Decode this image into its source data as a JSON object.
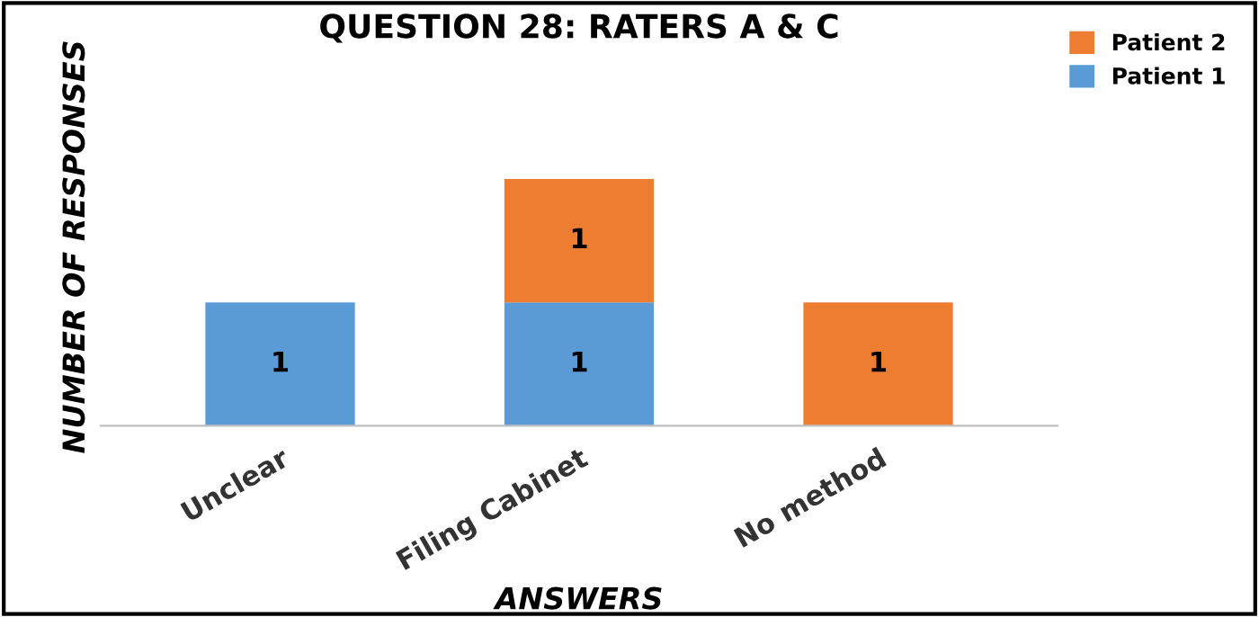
{
  "chart_data": {
    "type": "bar",
    "title": "QUESTION 28: RATERS A & C",
    "xlabel": "ANSWERS",
    "ylabel": "NUMBER OF RESPONSES",
    "categories": [
      "Unclear",
      "Filing Cabinet",
      "No method"
    ],
    "stacked": true,
    "data_labels": true,
    "legend": "top right",
    "grid": false,
    "series": [
      {
        "name": "Patient 1",
        "color": "#5b9bd5",
        "values": [
          1,
          1,
          null
        ]
      },
      {
        "name": "Patient 2",
        "color": "#ed7d31",
        "values": [
          null,
          1,
          1
        ]
      }
    ]
  }
}
